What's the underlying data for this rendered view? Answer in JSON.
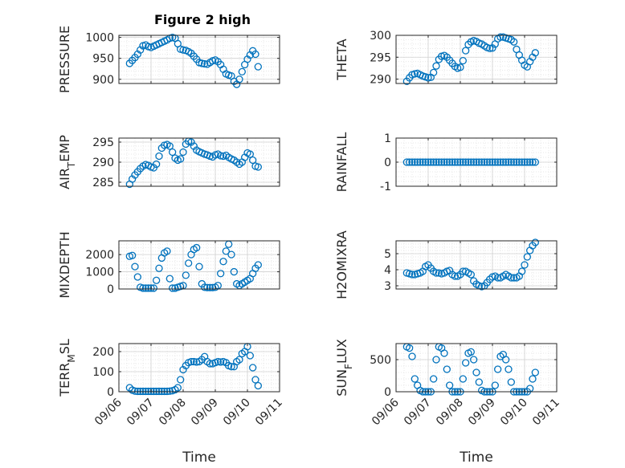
{
  "figure": {
    "title": "Figure 2 high"
  },
  "colors": {
    "marker": "#0072bd",
    "axis": "#262626",
    "grid": "#dfdfdf",
    "background": "#ffffff"
  },
  "chart_data": [
    {
      "type": "scatter",
      "title": "Figure 2 high",
      "ylabel": "PRESSURE",
      "xlabel": "",
      "xlim": [
        "09/06",
        "09/11"
      ],
      "ylim": [
        890,
        1005
      ],
      "yticks": [
        900,
        950,
        1000
      ],
      "xticks": [
        "09/06",
        "09/07",
        "09/08",
        "09/09",
        "09/10",
        "09/11"
      ],
      "show_xticklabels": false,
      "grid": true,
      "marker": "circle-open",
      "x": [
        "09/06 08:00",
        "09/06 10:00",
        "09/06 12:00",
        "09/06 14:00",
        "09/06 16:00",
        "09/06 18:00",
        "09/06 20:00",
        "09/06 22:00",
        "09/07 00:00",
        "09/07 02:00",
        "09/07 04:00",
        "09/07 06:00",
        "09/07 08:00",
        "09/07 10:00",
        "09/07 12:00",
        "09/07 14:00",
        "09/07 16:00",
        "09/07 18:00",
        "09/07 20:00",
        "09/07 22:00",
        "09/08 00:00",
        "09/08 02:00",
        "09/08 04:00",
        "09/08 06:00",
        "09/08 08:00",
        "09/08 10:00",
        "09/08 12:00",
        "09/08 14:00",
        "09/08 16:00",
        "09/08 18:00",
        "09/08 20:00",
        "09/08 22:00",
        "09/09 00:00",
        "09/09 02:00",
        "09/09 04:00",
        "09/09 06:00",
        "09/09 08:00",
        "09/09 10:00",
        "09/09 12:00",
        "09/09 14:00",
        "09/09 16:00",
        "09/09 18:00",
        "09/09 20:00",
        "09/09 22:00",
        "09/10 00:00",
        "09/10 02:00",
        "09/10 04:00",
        "09/10 06:00",
        "09/10 08:00"
      ],
      "y": [
        938,
        945,
        952,
        960,
        970,
        980,
        982,
        978,
        976,
        979,
        982,
        985,
        988,
        991,
        994,
        998,
        1000,
        998,
        985,
        972,
        970,
        969,
        966,
        962,
        955,
        948,
        940,
        938,
        937,
        936,
        940,
        944,
        946,
        942,
        935,
        924,
        913,
        910,
        908,
        895,
        888,
        900,
        918,
        935,
        948,
        958,
        968,
        960,
        930
      ]
    },
    {
      "type": "scatter",
      "ylabel": "THETA",
      "xlabel": "",
      "xlim": [
        "09/06",
        "09/11"
      ],
      "ylim": [
        289,
        300
      ],
      "yticks": [
        290,
        295,
        300
      ],
      "xticks": [
        "09/06",
        "09/07",
        "09/08",
        "09/09",
        "09/10",
        "09/11"
      ],
      "show_xticklabels": false,
      "grid": true,
      "marker": "circle-open",
      "x": [
        "09/06 08:00",
        "09/06 10:00",
        "09/06 12:00",
        "09/06 14:00",
        "09/06 16:00",
        "09/06 18:00",
        "09/06 20:00",
        "09/06 22:00",
        "09/07 00:00",
        "09/07 02:00",
        "09/07 04:00",
        "09/07 06:00",
        "09/07 08:00",
        "09/07 10:00",
        "09/07 12:00",
        "09/07 14:00",
        "09/07 16:00",
        "09/07 18:00",
        "09/07 20:00",
        "09/07 22:00",
        "09/08 00:00",
        "09/08 02:00",
        "09/08 04:00",
        "09/08 06:00",
        "09/08 08:00",
        "09/08 10:00",
        "09/08 12:00",
        "09/08 14:00",
        "09/08 16:00",
        "09/08 18:00",
        "09/08 20:00",
        "09/08 22:00",
        "09/09 00:00",
        "09/09 02:00",
        "09/09 04:00",
        "09/09 06:00",
        "09/09 08:00",
        "09/09 10:00",
        "09/09 12:00",
        "09/09 14:00",
        "09/09 16:00",
        "09/09 18:00",
        "09/09 20:00",
        "09/09 22:00",
        "09/10 00:00",
        "09/10 02:00",
        "09/10 04:00",
        "09/10 06:00",
        "09/10 08:00"
      ],
      "y": [
        289.5,
        290.3,
        291.0,
        291.2,
        291.3,
        291.0,
        290.7,
        290.5,
        290.3,
        290.4,
        291.5,
        293.0,
        294.5,
        295.2,
        295.4,
        295.0,
        294.3,
        293.6,
        292.9,
        292.5,
        292.7,
        294.2,
        296.5,
        297.9,
        298.5,
        298.8,
        298.6,
        298.2,
        298.0,
        297.6,
        297.2,
        297.0,
        297.1,
        298.0,
        299.2,
        299.6,
        299.6,
        299.4,
        299.2,
        299.0,
        298.5,
        296.8,
        295.5,
        294.3,
        293.2,
        292.8,
        294.0,
        295.0,
        296.0
      ]
    },
    {
      "type": "scatter",
      "ylabel": "AIR_TEMP",
      "xlabel": "",
      "xlim": [
        "09/06",
        "09/11"
      ],
      "ylim": [
        284,
        296
      ],
      "yticks": [
        285,
        290,
        295
      ],
      "xticks": [
        "09/06",
        "09/07",
        "09/08",
        "09/09",
        "09/10",
        "09/11"
      ],
      "show_xticklabels": false,
      "grid": true,
      "marker": "circle-open",
      "x": [
        "09/06 08:00",
        "09/06 10:00",
        "09/06 12:00",
        "09/06 14:00",
        "09/06 16:00",
        "09/06 18:00",
        "09/06 20:00",
        "09/06 22:00",
        "09/07 00:00",
        "09/07 02:00",
        "09/07 04:00",
        "09/07 06:00",
        "09/07 08:00",
        "09/07 10:00",
        "09/07 12:00",
        "09/07 14:00",
        "09/07 16:00",
        "09/07 18:00",
        "09/07 20:00",
        "09/07 22:00",
        "09/08 00:00",
        "09/08 02:00",
        "09/08 04:00",
        "09/08 06:00",
        "09/08 08:00",
        "09/08 10:00",
        "09/08 12:00",
        "09/08 14:00",
        "09/08 16:00",
        "09/08 18:00",
        "09/08 20:00",
        "09/08 22:00",
        "09/09 00:00",
        "09/09 02:00",
        "09/09 04:00",
        "09/09 06:00",
        "09/09 08:00",
        "09/09 10:00",
        "09/09 12:00",
        "09/09 14:00",
        "09/09 16:00",
        "09/09 18:00",
        "09/09 20:00",
        "09/09 22:00",
        "09/10 00:00",
        "09/10 02:00",
        "09/10 04:00",
        "09/10 06:00",
        "09/10 08:00"
      ],
      "y": [
        284.5,
        285.8,
        286.8,
        287.6,
        288.4,
        289.0,
        289.4,
        289.2,
        288.8,
        288.6,
        289.5,
        291.5,
        293.5,
        294.2,
        294.4,
        294.0,
        292.5,
        291.0,
        290.5,
        290.8,
        292.5,
        294.5,
        295.2,
        295.0,
        294.0,
        293.0,
        292.6,
        292.3,
        292.0,
        291.8,
        291.5,
        291.3,
        291.8,
        292.0,
        291.6,
        291.5,
        291.7,
        291.2,
        290.8,
        290.5,
        290.0,
        289.5,
        290.0,
        291.2,
        292.3,
        292.0,
        290.5,
        289.0,
        288.8
      ]
    },
    {
      "type": "scatter",
      "ylabel": "RAINFALL",
      "xlabel": "",
      "xlim": [
        "09/06",
        "09/11"
      ],
      "ylim": [
        -1,
        1
      ],
      "yticks": [
        -1,
        0,
        1
      ],
      "xticks": [
        "09/06",
        "09/07",
        "09/08",
        "09/09",
        "09/10",
        "09/11"
      ],
      "show_xticklabels": false,
      "grid": true,
      "marker": "circle-open",
      "x": [
        "09/06 08:00",
        "09/06 10:00",
        "09/06 12:00",
        "09/06 14:00",
        "09/06 16:00",
        "09/06 18:00",
        "09/06 20:00",
        "09/06 22:00",
        "09/07 00:00",
        "09/07 02:00",
        "09/07 04:00",
        "09/07 06:00",
        "09/07 08:00",
        "09/07 10:00",
        "09/07 12:00",
        "09/07 14:00",
        "09/07 16:00",
        "09/07 18:00",
        "09/07 20:00",
        "09/07 22:00",
        "09/08 00:00",
        "09/08 02:00",
        "09/08 04:00",
        "09/08 06:00",
        "09/08 08:00",
        "09/08 10:00",
        "09/08 12:00",
        "09/08 14:00",
        "09/08 16:00",
        "09/08 18:00",
        "09/08 20:00",
        "09/08 22:00",
        "09/09 00:00",
        "09/09 02:00",
        "09/09 04:00",
        "09/09 06:00",
        "09/09 08:00",
        "09/09 10:00",
        "09/09 12:00",
        "09/09 14:00",
        "09/09 16:00",
        "09/09 18:00",
        "09/09 20:00",
        "09/09 22:00",
        "09/10 00:00",
        "09/10 02:00",
        "09/10 04:00",
        "09/10 06:00",
        "09/10 08:00"
      ],
      "y": [
        0,
        0,
        0,
        0,
        0,
        0,
        0,
        0,
        0,
        0,
        0,
        0,
        0,
        0,
        0,
        0,
        0,
        0,
        0,
        0,
        0,
        0,
        0,
        0,
        0,
        0,
        0,
        0,
        0,
        0,
        0,
        0,
        0,
        0,
        0,
        0,
        0,
        0,
        0,
        0,
        0,
        0,
        0,
        0,
        0,
        0,
        0,
        0,
        0
      ]
    },
    {
      "type": "scatter",
      "ylabel": "MIXDEPTH",
      "xlabel": "",
      "xlim": [
        "09/06",
        "09/11"
      ],
      "ylim": [
        0,
        2800
      ],
      "yticks": [
        0,
        1000,
        2000
      ],
      "xticks": [
        "09/06",
        "09/07",
        "09/08",
        "09/09",
        "09/10",
        "09/11"
      ],
      "show_xticklabels": false,
      "grid": true,
      "marker": "circle-open",
      "x": [
        "09/06 08:00",
        "09/06 10:00",
        "09/06 12:00",
        "09/06 14:00",
        "09/06 16:00",
        "09/06 18:00",
        "09/06 20:00",
        "09/06 22:00",
        "09/07 00:00",
        "09/07 02:00",
        "09/07 04:00",
        "09/07 06:00",
        "09/07 08:00",
        "09/07 10:00",
        "09/07 12:00",
        "09/07 14:00",
        "09/07 16:00",
        "09/07 18:00",
        "09/07 20:00",
        "09/07 22:00",
        "09/08 00:00",
        "09/08 02:00",
        "09/08 04:00",
        "09/08 06:00",
        "09/08 08:00",
        "09/08 10:00",
        "09/08 12:00",
        "09/08 14:00",
        "09/08 16:00",
        "09/08 18:00",
        "09/08 20:00",
        "09/08 22:00",
        "09/09 00:00",
        "09/09 02:00",
        "09/09 04:00",
        "09/09 06:00",
        "09/09 08:00",
        "09/09 10:00",
        "09/09 12:00",
        "09/09 14:00",
        "09/09 16:00",
        "09/09 18:00",
        "09/09 20:00",
        "09/09 22:00",
        "09/10 00:00",
        "09/10 02:00",
        "09/10 04:00",
        "09/10 06:00",
        "09/10 08:00"
      ],
      "y": [
        1900,
        1950,
        1300,
        700,
        100,
        50,
        50,
        50,
        50,
        50,
        500,
        1200,
        1800,
        2100,
        2200,
        600,
        50,
        50,
        100,
        150,
        200,
        800,
        1500,
        2000,
        2300,
        2400,
        1300,
        300,
        100,
        80,
        80,
        80,
        100,
        200,
        900,
        1600,
        2200,
        2600,
        2000,
        1000,
        300,
        200,
        300,
        400,
        500,
        600,
        900,
        1200,
        1400
      ]
    },
    {
      "type": "scatter",
      "ylabel": "H2OMIXRA",
      "xlabel": "",
      "xlim": [
        "09/06",
        "09/11"
      ],
      "ylim": [
        2.8,
        5.8
      ],
      "yticks": [
        3,
        4,
        5
      ],
      "xticks": [
        "09/06",
        "09/07",
        "09/08",
        "09/09",
        "09/10",
        "09/11"
      ],
      "show_xticklabels": false,
      "grid": true,
      "marker": "circle-open",
      "x": [
        "09/06 08:00",
        "09/06 10:00",
        "09/06 12:00",
        "09/06 14:00",
        "09/06 16:00",
        "09/06 18:00",
        "09/06 20:00",
        "09/06 22:00",
        "09/07 00:00",
        "09/07 02:00",
        "09/07 04:00",
        "09/07 06:00",
        "09/07 08:00",
        "09/07 10:00",
        "09/07 12:00",
        "09/07 14:00",
        "09/07 16:00",
        "09/07 18:00",
        "09/07 20:00",
        "09/07 22:00",
        "09/08 00:00",
        "09/08 02:00",
        "09/08 04:00",
        "09/08 06:00",
        "09/08 08:00",
        "09/08 10:00",
        "09/08 12:00",
        "09/08 14:00",
        "09/08 16:00",
        "09/08 18:00",
        "09/08 20:00",
        "09/08 22:00",
        "09/09 00:00",
        "09/09 02:00",
        "09/09 04:00",
        "09/09 06:00",
        "09/09 08:00",
        "09/09 10:00",
        "09/09 12:00",
        "09/09 14:00",
        "09/09 16:00",
        "09/09 18:00",
        "09/09 20:00",
        "09/09 22:00",
        "09/10 00:00",
        "09/10 02:00",
        "09/10 04:00",
        "09/10 06:00",
        "09/10 08:00"
      ],
      "y": [
        3.8,
        3.75,
        3.7,
        3.7,
        3.75,
        3.8,
        3.9,
        4.2,
        4.3,
        4.1,
        3.9,
        3.8,
        3.8,
        3.75,
        3.8,
        3.9,
        3.95,
        3.7,
        3.6,
        3.6,
        3.7,
        3.9,
        3.9,
        3.8,
        3.7,
        3.3,
        3.1,
        3.0,
        2.95,
        3.0,
        3.2,
        3.4,
        3.55,
        3.6,
        3.5,
        3.5,
        3.6,
        3.7,
        3.6,
        3.5,
        3.5,
        3.5,
        3.6,
        3.9,
        4.3,
        4.8,
        5.2,
        5.5,
        5.7
      ]
    },
    {
      "type": "scatter",
      "ylabel": "TERR_MSL",
      "xlabel": "Time",
      "xlim": [
        "09/06",
        "09/11"
      ],
      "ylim": [
        0,
        240
      ],
      "yticks": [
        0,
        100,
        200
      ],
      "xticks": [
        "09/06",
        "09/07",
        "09/08",
        "09/09",
        "09/10",
        "09/11"
      ],
      "show_xticklabels": true,
      "grid": true,
      "marker": "circle-open",
      "x": [
        "09/06 08:00",
        "09/06 10:00",
        "09/06 12:00",
        "09/06 14:00",
        "09/06 16:00",
        "09/06 18:00",
        "09/06 20:00",
        "09/06 22:00",
        "09/07 00:00",
        "09/07 02:00",
        "09/07 04:00",
        "09/07 06:00",
        "09/07 08:00",
        "09/07 10:00",
        "09/07 12:00",
        "09/07 14:00",
        "09/07 16:00",
        "09/07 18:00",
        "09/07 20:00",
        "09/07 22:00",
        "09/08 00:00",
        "09/08 02:00",
        "09/08 04:00",
        "09/08 06:00",
        "09/08 08:00",
        "09/08 10:00",
        "09/08 12:00",
        "09/08 14:00",
        "09/08 16:00",
        "09/08 18:00",
        "09/08 20:00",
        "09/08 22:00",
        "09/09 00:00",
        "09/09 02:00",
        "09/09 04:00",
        "09/09 06:00",
        "09/09 08:00",
        "09/09 10:00",
        "09/09 12:00",
        "09/09 14:00",
        "09/09 16:00",
        "09/09 18:00",
        "09/09 20:00",
        "09/09 22:00",
        "09/10 00:00",
        "09/10 02:00",
        "09/10 04:00",
        "09/10 06:00",
        "09/10 08:00"
      ],
      "y": [
        20,
        8,
        3,
        2,
        2,
        2,
        2,
        2,
        2,
        2,
        2,
        2,
        2,
        2,
        2,
        3,
        5,
        10,
        20,
        60,
        110,
        130,
        145,
        150,
        150,
        148,
        150,
        160,
        175,
        150,
        140,
        140,
        145,
        150,
        148,
        150,
        145,
        130,
        125,
        125,
        150,
        160,
        190,
        200,
        225,
        180,
        120,
        60,
        30
      ]
    },
    {
      "type": "scatter",
      "ylabel": "SUN_FLUX",
      "xlabel": "Time",
      "xlim": [
        "09/06",
        "09/11"
      ],
      "ylim": [
        0,
        750
      ],
      "yticks": [
        0,
        500
      ],
      "xticks": [
        "09/06",
        "09/07",
        "09/08",
        "09/09",
        "09/10",
        "09/11"
      ],
      "show_xticklabels": true,
      "grid": true,
      "marker": "circle-open",
      "x": [
        "09/06 08:00",
        "09/06 10:00",
        "09/06 12:00",
        "09/06 14:00",
        "09/06 16:00",
        "09/06 18:00",
        "09/06 20:00",
        "09/06 22:00",
        "09/07 00:00",
        "09/07 02:00",
        "09/07 04:00",
        "09/07 06:00",
        "09/07 08:00",
        "09/07 10:00",
        "09/07 12:00",
        "09/07 14:00",
        "09/07 16:00",
        "09/07 18:00",
        "09/07 20:00",
        "09/07 22:00",
        "09/08 00:00",
        "09/08 02:00",
        "09/08 04:00",
        "09/08 06:00",
        "09/08 08:00",
        "09/08 10:00",
        "09/08 12:00",
        "09/08 14:00",
        "09/08 16:00",
        "09/08 18:00",
        "09/08 20:00",
        "09/08 22:00",
        "09/09 00:00",
        "09/09 02:00",
        "09/09 04:00",
        "09/09 06:00",
        "09/09 08:00",
        "09/09 10:00",
        "09/09 12:00",
        "09/09 14:00",
        "09/09 16:00",
        "09/09 18:00",
        "09/09 20:00",
        "09/09 22:00",
        "09/10 00:00",
        "09/10 02:00",
        "09/10 04:00",
        "09/10 06:00",
        "09/10 08:00"
      ],
      "y": [
        700,
        680,
        550,
        200,
        100,
        20,
        0,
        0,
        0,
        0,
        200,
        500,
        700,
        680,
        600,
        350,
        100,
        0,
        0,
        0,
        0,
        200,
        450,
        600,
        620,
        500,
        300,
        150,
        20,
        0,
        0,
        0,
        0,
        100,
        350,
        550,
        580,
        500,
        350,
        150,
        0,
        0,
        0,
        0,
        0,
        0,
        50,
        200,
        300
      ]
    }
  ]
}
